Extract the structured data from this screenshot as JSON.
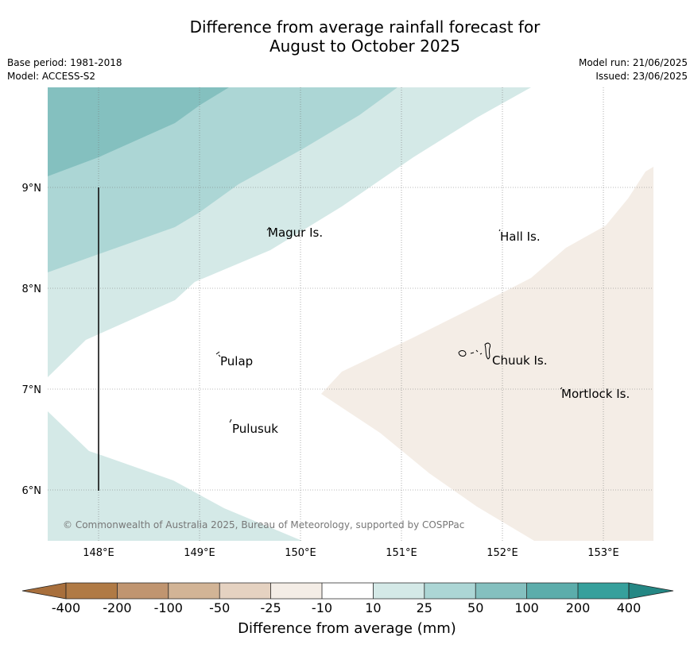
{
  "title": {
    "line1": "Difference from average rainfall forecast for",
    "line2": "August to October 2025"
  },
  "meta": {
    "base_period": "Base period: 1981-2018",
    "model": "Model: ACCESS-S2",
    "model_run": "Model run: 21/06/2025",
    "issued": "Issued: 23/06/2025"
  },
  "axes": {
    "lon_ticks": [
      "148°E",
      "149°E",
      "150°E",
      "151°E",
      "152°E",
      "153°E"
    ],
    "lat_ticks": [
      "9°N",
      "8°N",
      "7°N",
      "6°N"
    ]
  },
  "places": [
    {
      "name": "Magur Is."
    },
    {
      "name": "Hall Is."
    },
    {
      "name": "Pulap"
    },
    {
      "name": "Chuuk Is."
    },
    {
      "name": "Mortlock Is."
    },
    {
      "name": "Pulusuk"
    }
  ],
  "copyright": "© Commonwealth of Australia 2025, Bureau of Meteorology, supported by COSPPac",
  "colorbar": {
    "title": "Difference from average (mm)",
    "labels": [
      "-400",
      "-200",
      "-100",
      "-50",
      "-25",
      "-10",
      "10",
      "25",
      "50",
      "100",
      "200",
      "400"
    ],
    "colors": [
      "#a86f3c",
      "#b07a45",
      "#c09570",
      "#d2b496",
      "#e5d2c1",
      "#f4ede6",
      "#ffffff",
      "#d4e9e7",
      "#acd6d5",
      "#84c0bf",
      "#5cadab",
      "#36a09c",
      "#248784"
    ]
  }
}
